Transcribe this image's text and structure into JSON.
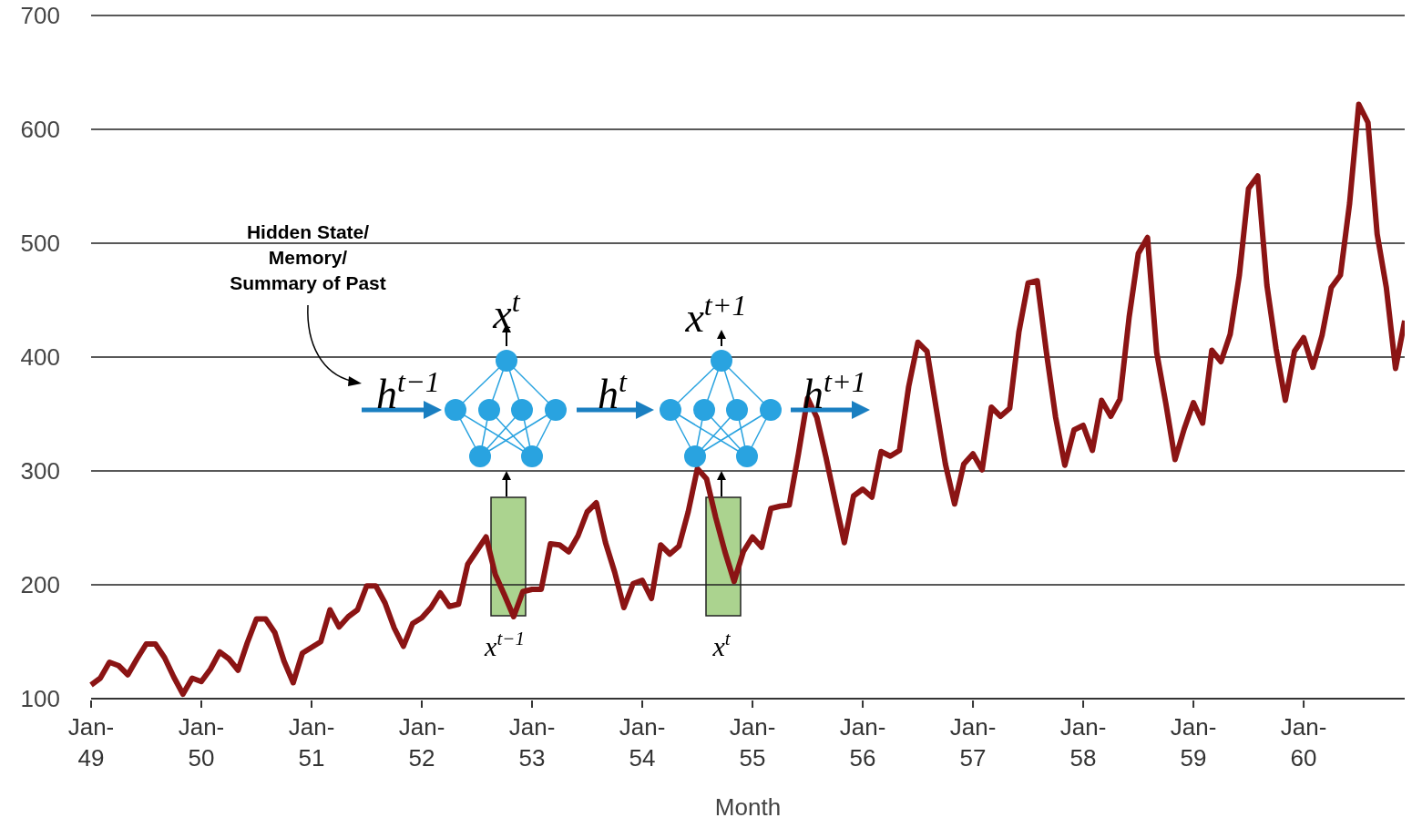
{
  "chart_data": {
    "type": "line",
    "xlabel": "Month",
    "categories": [
      "Jan-49",
      null,
      null,
      null,
      null,
      null,
      null,
      null,
      null,
      null,
      null,
      null,
      "Jan-50",
      null,
      null,
      null,
      null,
      null,
      null,
      null,
      null,
      null,
      null,
      null,
      "Jan-51",
      null,
      null,
      null,
      null,
      null,
      null,
      null,
      null,
      null,
      null,
      null,
      "Jan-52",
      null,
      null,
      null,
      null,
      null,
      null,
      null,
      null,
      null,
      null,
      null,
      "Jan-53",
      null,
      null,
      null,
      null,
      null,
      null,
      null,
      null,
      null,
      null,
      null,
      "Jan-54",
      null,
      null,
      null,
      null,
      null,
      null,
      null,
      null,
      null,
      null,
      null,
      "Jan-55",
      null,
      null,
      null,
      null,
      null,
      null,
      null,
      null,
      null,
      null,
      null,
      "Jan-56",
      null,
      null,
      null,
      null,
      null,
      null,
      null,
      null,
      null,
      null,
      null,
      "Jan-57",
      null,
      null,
      null,
      null,
      null,
      null,
      null,
      null,
      null,
      null,
      null,
      "Jan-58",
      null,
      null,
      null,
      null,
      null,
      null,
      null,
      null,
      null,
      null,
      null,
      "Jan-59",
      null,
      null,
      null,
      null,
      null,
      null,
      null,
      null,
      null,
      null,
      null,
      "Jan-60",
      null,
      null,
      null,
      null,
      null,
      null,
      null,
      null,
      null,
      null,
      null
    ],
    "series": [
      {
        "color": "#8b1414",
        "values": [
          112,
          118,
          132,
          129,
          121,
          135,
          148,
          148,
          136,
          119,
          104,
          118,
          115,
          126,
          141,
          135,
          125,
          149,
          170,
          170,
          158,
          133,
          114,
          140,
          145,
          150,
          178,
          163,
          172,
          178,
          199,
          199,
          184,
          162,
          146,
          166,
          171,
          180,
          193,
          181,
          183,
          218,
          230,
          242,
          209,
          191,
          172,
          194,
          196,
          196,
          236,
          235,
          229,
          243,
          264,
          272,
          237,
          211,
          180,
          201,
          204,
          188,
          235,
          227,
          234,
          264,
          302,
          293,
          259,
          229,
          203,
          229,
          242,
          233,
          267,
          269,
          270,
          315,
          364,
          347,
          312,
          274,
          237,
          278,
          284,
          277,
          317,
          313,
          318,
          374,
          413,
          405,
          355,
          306,
          271,
          306,
          315,
          301,
          356,
          348,
          355,
          422,
          465,
          467,
          404,
          347,
          305,
          336,
          340,
          318,
          362,
          348,
          363,
          435,
          491,
          505,
          404,
          359,
          310,
          337,
          360,
          342,
          406,
          396,
          420,
          472,
          548,
          559,
          463,
          407,
          362,
          405,
          417,
          391,
          419,
          461,
          472,
          535,
          622,
          606,
          508,
          461,
          390,
          432
        ]
      }
    ],
    "ylim": [
      100,
      700
    ],
    "yticks": [
      100,
      200,
      300,
      400,
      500,
      600,
      700
    ],
    "grid": "y",
    "marker": "none",
    "annotations": [
      "Hidden State/\nMemory/\nSummary of Past",
      "x$^{t}$",
      "h$^{t−1}$",
      "h$^{t}$",
      "x$^{t+1}$",
      "h$^{t+1}$",
      "x$^{t−1}$",
      "x$^{t}$"
    ]
  }
}
